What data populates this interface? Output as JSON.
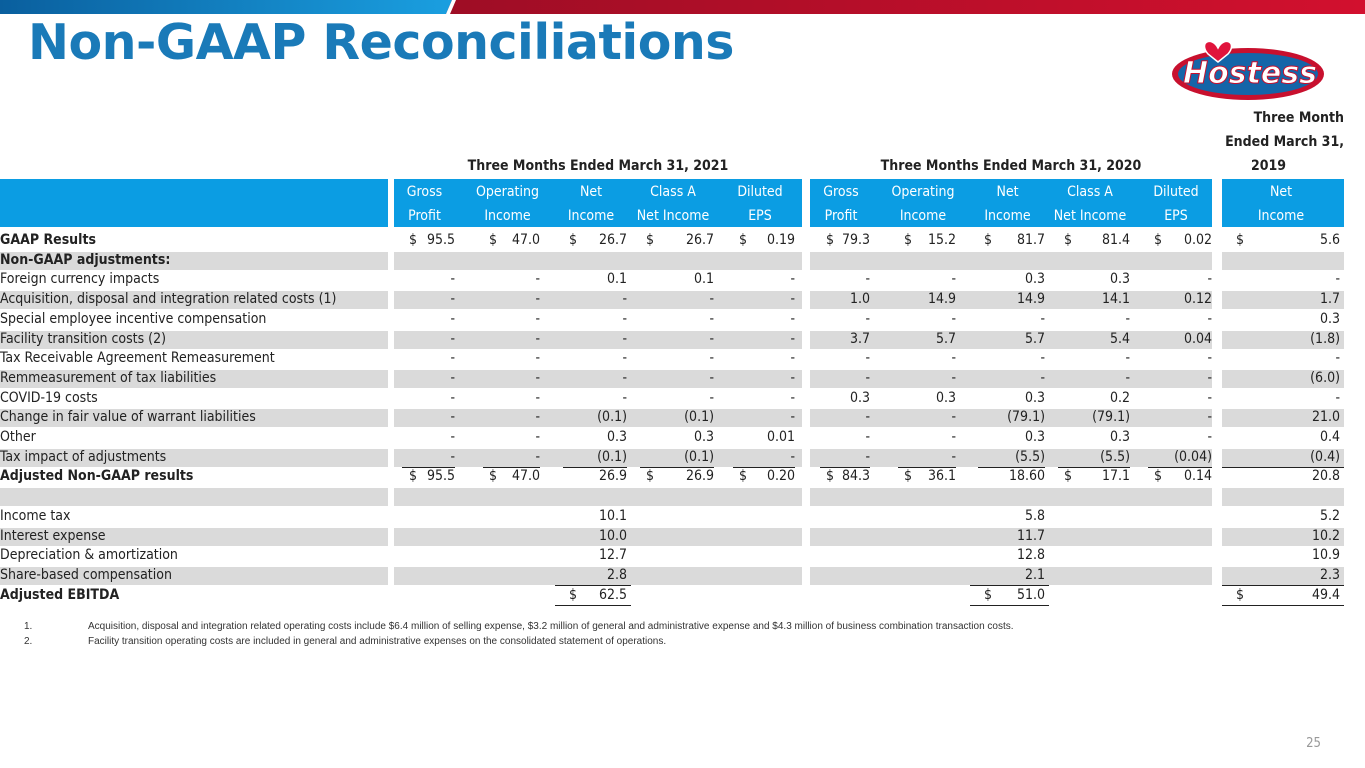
{
  "title": "Non-GAAP Reconciliations",
  "logo_text": "Hostess",
  "page_number": "25",
  "colors": {
    "title": "#1a7ab8",
    "header_bg": "#0b9de3",
    "stripe": "#dadada",
    "bar_blue": "#1a7ab8",
    "bar_red": "#c8102e"
  },
  "period_headers": {
    "p2021": "Three Months Ended March 31, 2021",
    "p2020": "Three Months Ended March 31, 2020",
    "p2019_l1": "Three Month",
    "p2019_l2": "Ended March 31,",
    "p2019_l3": "2019"
  },
  "col_headers": {
    "line1": [
      "Gross",
      "Operating",
      "Net",
      "Class A",
      "Diluted",
      "Gross",
      "Operating",
      "Net",
      "Class A",
      "Diluted",
      "Net"
    ],
    "line2": [
      "Profit",
      "Income",
      "Income",
      "Net Income",
      "EPS",
      "Profit",
      "Income",
      "Income",
      "Net Income",
      "EPS",
      "Income"
    ]
  },
  "rows": [
    {
      "label": "GAAP Results",
      "bold": true,
      "values": [
        "95.5",
        "47.0",
        "26.7",
        "26.7",
        "0.19",
        "79.3",
        "15.2",
        "81.7",
        "81.4",
        "0.02",
        "5.6"
      ],
      "dollars": [
        1,
        1,
        1,
        1,
        1,
        1,
        1,
        1,
        1,
        1,
        1
      ]
    },
    {
      "label": "Non-GAAP adjustments:",
      "bold": true,
      "values": [
        "",
        "",
        "",
        "",
        "",
        "",
        "",
        "",
        "",
        "",
        ""
      ]
    },
    {
      "label": "Foreign currency impacts",
      "values": [
        "-",
        "-",
        "0.1",
        "0.1",
        "-",
        "-",
        "-",
        "0.3",
        "0.3",
        "-",
        "-"
      ]
    },
    {
      "label": "Acquisition, disposal and integration related costs (1)",
      "values": [
        "-",
        "-",
        "-",
        "-",
        "-",
        "1.0",
        "14.9",
        "14.9",
        "14.1",
        "0.12",
        "1.7"
      ]
    },
    {
      "label": "Special employee incentive compensation",
      "values": [
        "-",
        "-",
        "-",
        "-",
        "-",
        "-",
        "-",
        "-",
        "-",
        "-",
        "0.3"
      ]
    },
    {
      "label": "Facility transition costs (2)",
      "values": [
        "-",
        "-",
        "-",
        "-",
        "-",
        "3.7",
        "5.7",
        "5.7",
        "5.4",
        "0.04",
        "(1.8)"
      ]
    },
    {
      "label": "Tax Receivable Agreement Remeasurement",
      "values": [
        "-",
        "-",
        "-",
        "-",
        "-",
        "-",
        "-",
        "-",
        "-",
        "-",
        "-"
      ]
    },
    {
      "label": "Remmeasurement of tax liabilities",
      "values": [
        "-",
        "-",
        "-",
        "-",
        "-",
        "-",
        "-",
        "-",
        "-",
        "-",
        "(6.0)"
      ]
    },
    {
      "label": "COVID-19 costs",
      "values": [
        "-",
        "-",
        "-",
        "-",
        "-",
        "0.3",
        "0.3",
        "0.3",
        "0.2",
        "-",
        "-"
      ]
    },
    {
      "label": "Change in fair value of warrant liabilities",
      "values": [
        "-",
        "-",
        "(0.1)",
        "(0.1)",
        "-",
        "-",
        "-",
        "(79.1)",
        "(79.1)",
        "-",
        "21.0"
      ]
    },
    {
      "label": "Other",
      "values": [
        "-",
        "-",
        "0.3",
        "0.3",
        "0.01",
        "-",
        "-",
        "0.3",
        "0.3",
        "-",
        "0.4"
      ]
    },
    {
      "label": "Tax impact of adjustments",
      "values": [
        "-",
        "-",
        "(0.1)",
        "(0.1)",
        "-",
        "-",
        "-",
        "(5.5)",
        "(5.5)",
        "(0.04)",
        "(0.4)"
      ],
      "underline": true
    },
    {
      "label": "Adjusted Non-GAAP results",
      "bold": true,
      "values": [
        "95.5",
        "47.0",
        "26.9",
        "26.9",
        "0.20",
        "84.3",
        "36.1",
        "18.60",
        "17.1",
        "0.14",
        "20.8"
      ],
      "dollars": [
        1,
        1,
        0,
        1,
        1,
        1,
        1,
        0,
        1,
        1,
        0
      ]
    },
    {
      "label": "",
      "values": [
        "",
        "",
        "",
        "",
        "",
        "",
        "",
        "",
        "",
        "",
        ""
      ]
    },
    {
      "label": "Income tax",
      "values": [
        "",
        "",
        "10.1",
        "",
        "",
        "",
        "",
        "5.8",
        "",
        "",
        "5.2"
      ]
    },
    {
      "label": "Interest expense",
      "values": [
        "",
        "",
        "10.0",
        "",
        "",
        "",
        "",
        "11.7",
        "",
        "",
        "10.2"
      ]
    },
    {
      "label": "Depreciation & amortization",
      "values": [
        "",
        "",
        "12.7",
        "",
        "",
        "",
        "",
        "12.8",
        "",
        "",
        "10.9"
      ]
    },
    {
      "label": "Share-based compensation",
      "values": [
        "",
        "",
        "2.8",
        "",
        "",
        "",
        "",
        "2.1",
        "",
        "",
        "2.3"
      ],
      "underline_cols": [
        2,
        7,
        10
      ]
    },
    {
      "label": "Adjusted EBITDA",
      "bold": true,
      "values": [
        "",
        "",
        "62.5",
        "",
        "",
        "",
        "",
        "51.0",
        "",
        "",
        "49.4"
      ],
      "dollars": [
        0,
        0,
        1,
        0,
        0,
        0,
        0,
        1,
        0,
        0,
        1
      ],
      "underline_cols": [
        2,
        7,
        10
      ]
    }
  ],
  "footnotes": [
    {
      "num": "1.",
      "text": "Acquisition, disposal and integration related operating costs include $6.4 million of selling expense, $3.2 million of general and administrative expense and $4.3 million of business combination transaction costs."
    },
    {
      "num": "2.",
      "text": "Facility transition operating costs are included in general and administrative expenses on the consolidated statement of operations."
    }
  ]
}
